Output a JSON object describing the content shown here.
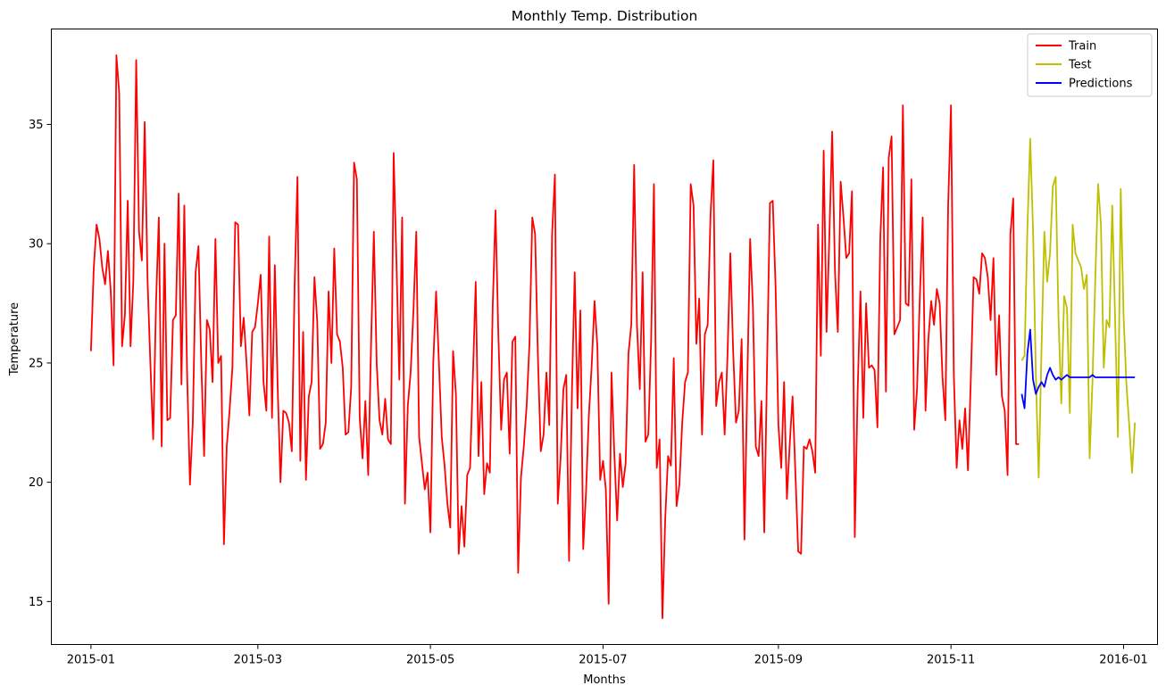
{
  "chart_data": {
    "type": "line",
    "title": "Monthly Temp. Distribution",
    "xlabel": "Months",
    "ylabel": "Temperature",
    "x_start": "2015-01-01",
    "x_end": "2016-01-01",
    "xlim": [
      "2014-12-18",
      "2016-01-13"
    ],
    "ylim": [
      13.2,
      39.0
    ],
    "x_ticks": [
      "2015-01",
      "2015-03",
      "2015-05",
      "2015-07",
      "2015-09",
      "2015-11",
      "2016-01"
    ],
    "y_ticks": [
      15,
      20,
      25,
      30,
      35
    ],
    "grid": false,
    "legend_position": "top-right",
    "series": [
      {
        "name": "Train",
        "color": "#ff0000",
        "start_date": "2015-01-01",
        "values": [
          25.5,
          29.0,
          30.8,
          30.2,
          29.0,
          28.3,
          29.7,
          28.0,
          24.9,
          37.9,
          36.3,
          25.7,
          27.0,
          31.8,
          25.7,
          28.5,
          37.7,
          30.5,
          29.3,
          35.1,
          28.5,
          25.0,
          21.8,
          27.5,
          31.1,
          21.5,
          30.0,
          22.6,
          22.7,
          26.8,
          27.0,
          32.1,
          24.1,
          31.6,
          24.5,
          19.9,
          22.5,
          28.8,
          29.9,
          25.0,
          21.1,
          26.8,
          26.4,
          24.2,
          30.2,
          25.0,
          25.3,
          17.4,
          21.5,
          23.0,
          24.8,
          30.9,
          30.8,
          25.7,
          26.9,
          25.0,
          22.8,
          26.3,
          26.5,
          27.5,
          28.7,
          24.2,
          23.0,
          30.3,
          22.7,
          29.1,
          24.0,
          20.0,
          23.0,
          22.9,
          22.5,
          21.3,
          28.3,
          32.8,
          20.9,
          26.3,
          20.1,
          23.6,
          24.2,
          28.6,
          26.7,
          21.4,
          21.6,
          22.5,
          28.0,
          25.0,
          29.8,
          26.2,
          25.9,
          24.8,
          22.0,
          22.1,
          24.0,
          33.4,
          32.7,
          22.7,
          21.0,
          23.4,
          20.3,
          25.7,
          30.5,
          25.0,
          22.6,
          22.0,
          23.5,
          21.8,
          21.6,
          33.8,
          29.2,
          24.3,
          31.1,
          19.1,
          23.2,
          24.6,
          27.2,
          30.5,
          21.9,
          20.8,
          19.7,
          20.4,
          17.9,
          25.0,
          28.0,
          25.0,
          21.9,
          20.7,
          19.1,
          18.1,
          25.5,
          23.7,
          17.0,
          19.0,
          17.3,
          20.3,
          20.6,
          24.4,
          28.4,
          21.1,
          24.2,
          19.5,
          20.8,
          20.4,
          27.3,
          31.4,
          26.2,
          22.2,
          24.3,
          24.6,
          21.2,
          25.9,
          26.1,
          16.2,
          20.2,
          21.5,
          23.2,
          25.8,
          31.1,
          30.4,
          25.2,
          21.3,
          22.0,
          24.6,
          22.4,
          30.4,
          32.9,
          19.1,
          21.0,
          23.9,
          24.5,
          16.7,
          23.7,
          28.8,
          23.1,
          27.2,
          17.2,
          19.6,
          22.8,
          24.9,
          27.6,
          25.7,
          20.1,
          20.9,
          19.7,
          14.9,
          24.6,
          21.2,
          18.4,
          21.2,
          19.8,
          20.8,
          25.4,
          26.6,
          33.3,
          26.6,
          23.9,
          28.8,
          21.7,
          22.0,
          25.9,
          32.5,
          20.6,
          21.8,
          14.3,
          18.5,
          21.1,
          20.7,
          25.2,
          19.0,
          19.9,
          22.5,
          24.2,
          24.6,
          32.5,
          31.6,
          25.8,
          27.7,
          22.0,
          26.2,
          26.6,
          31.2,
          33.5,
          23.2,
          24.2,
          24.6,
          22.0,
          25.3,
          29.6,
          25.5,
          22.5,
          23.0,
          26.0,
          17.6,
          24.2,
          30.2,
          27.3,
          21.5,
          21.1,
          23.4,
          17.9,
          25.0,
          31.7,
          31.8,
          28.2,
          22.4,
          20.6,
          24.2,
          19.3,
          21.6,
          23.6,
          20.4,
          17.1,
          17.0,
          21.5,
          21.4,
          21.8,
          21.3,
          20.4,
          30.8,
          25.3,
          33.9,
          26.3,
          30.3,
          34.7,
          28.8,
          26.3,
          32.6,
          31.1,
          29.4,
          29.6,
          32.2,
          17.7,
          23.8,
          28.0,
          22.7,
          27.5,
          24.8,
          24.9,
          24.7,
          22.3,
          30.2,
          33.2,
          23.8,
          33.6,
          34.5,
          26.2,
          26.5,
          26.8,
          35.8,
          27.5,
          27.4,
          32.7,
          22.2,
          23.9,
          27.8,
          31.1,
          23.0,
          26.0,
          27.6,
          26.6,
          28.1,
          27.5,
          24.4,
          22.6,
          31.6,
          35.8,
          24.5,
          20.6,
          22.6,
          21.4,
          23.1,
          20.5,
          24.3,
          28.6,
          28.5,
          27.9,
          29.6,
          29.4,
          28.6,
          26.8,
          29.4,
          24.5,
          27.0,
          23.6,
          23.0,
          20.3,
          30.4,
          31.9,
          21.6,
          21.6
        ]
      },
      {
        "name": "Test",
        "color": "#bfbf00",
        "start_date": "2015-11-26",
        "values": [
          25.1,
          25.3,
          30.6,
          34.4,
          30.6,
          24.5,
          20.2,
          25.6,
          30.5,
          28.4,
          29.6,
          32.4,
          32.8,
          26.9,
          23.3,
          27.8,
          27.3,
          22.9,
          30.8,
          29.6,
          29.3,
          29.0,
          28.1,
          28.7,
          21.0,
          24.2,
          28.5,
          32.5,
          30.8,
          24.8,
          26.8,
          26.5,
          31.6,
          26.9,
          21.9,
          32.3,
          27.0,
          24.1,
          22.4,
          20.4,
          22.5
        ]
      },
      {
        "name": "Predictions",
        "color": "#0000ff",
        "start_date": "2015-11-26",
        "values": [
          23.7,
          23.1,
          25.4,
          26.4,
          24.3,
          23.7,
          24.0,
          24.2,
          24.0,
          24.5,
          24.8,
          24.5,
          24.3,
          24.4,
          24.3,
          24.4,
          24.5,
          24.4,
          24.4,
          24.4,
          24.4,
          24.4,
          24.4,
          24.4,
          24.4,
          24.5,
          24.4,
          24.4,
          24.4,
          24.4,
          24.4,
          24.4,
          24.4,
          24.4,
          24.4,
          24.4,
          24.4,
          24.4,
          24.4,
          24.4,
          24.4
        ]
      }
    ]
  }
}
